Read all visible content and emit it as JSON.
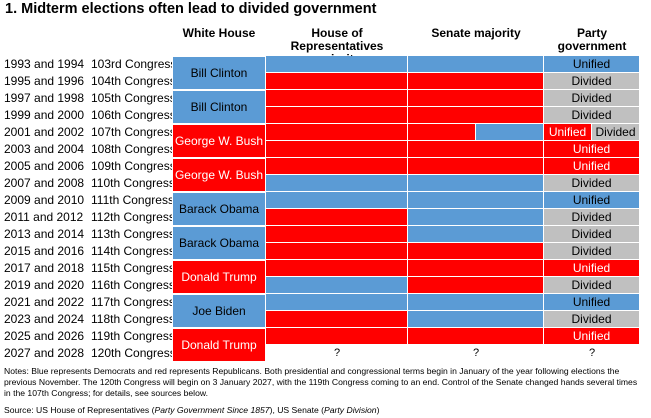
{
  "title": "1. Midterm elections often lead to divided government",
  "columns": {
    "white_house": "White House",
    "house": "House of Representatives majority",
    "senate": "Senate majority",
    "party_government": "Party government"
  },
  "colors": {
    "democrat": "#5b9bd5",
    "republican": "#ff0000",
    "divided": "#c0c0c0"
  },
  "unknown_marker": "?",
  "notes": "Notes: Blue represents Democrats and red represents Republicans. Both presidential and congressional terms begin in January of the year following elections the previous November. The 120th Congress will begin on 3 January 2027, with the 119th Congress coming to an end. Control of the Senate changed hands several times in the 107th Congress; for details, see sources below.",
  "source": {
    "prefix": "Source: US House of Representatives (",
    "house_title": "Party Government Since 1857",
    "middle": "), US Senate (",
    "senate_title": "Party Division",
    "suffix": ")"
  },
  "chart_data": {
    "type": "table",
    "presidents": [
      {
        "name": "Bill Clinton",
        "party": "D",
        "first_row": 0,
        "rows": 2
      },
      {
        "name": "Bill Clinton",
        "party": "D",
        "first_row": 2,
        "rows": 2
      },
      {
        "name": "George W. Bush",
        "party": "R",
        "first_row": 4,
        "rows": 2
      },
      {
        "name": "George W. Bush",
        "party": "R",
        "first_row": 6,
        "rows": 2
      },
      {
        "name": "Barack Obama",
        "party": "D",
        "first_row": 8,
        "rows": 2
      },
      {
        "name": "Barack Obama",
        "party": "D",
        "first_row": 10,
        "rows": 2
      },
      {
        "name": "Donald Trump",
        "party": "R",
        "first_row": 12,
        "rows": 2
      },
      {
        "name": "Joe Biden",
        "party": "D",
        "first_row": 14,
        "rows": 2
      },
      {
        "name": "Donald Trump",
        "party": "R",
        "first_row": 16,
        "rows": 2
      }
    ],
    "rows": [
      {
        "years": "1993 and 1994",
        "congress": "103rd Congress",
        "house": "D",
        "senate": "D",
        "government": "Unified"
      },
      {
        "years": "1995 and 1996",
        "congress": "104th Congress",
        "house": "R",
        "senate": "R",
        "government": "Divided"
      },
      {
        "years": "1997 and 1998",
        "congress": "105th Congress",
        "house": "R",
        "senate": "R",
        "government": "Divided"
      },
      {
        "years": "1999 and 2000",
        "congress": "106th Congress",
        "house": "R",
        "senate": "R",
        "government": "Divided"
      },
      {
        "years": "2001 and 2002",
        "congress": "107th Congress",
        "house": "R",
        "senate": "R/D",
        "senate_split": 0.5,
        "government": "Unified/Divided",
        "government_split": [
          "Unified",
          "Divided"
        ]
      },
      {
        "years": "2003 and 2004",
        "congress": "108th Congress",
        "house": "R",
        "senate": "R",
        "government": "Unified"
      },
      {
        "years": "2005 and 2006",
        "congress": "109th Congress",
        "house": "R",
        "senate": "R",
        "government": "Unified"
      },
      {
        "years": "2007 and 2008",
        "congress": "110th Congress",
        "house": "D",
        "senate": "D",
        "government": "Divided"
      },
      {
        "years": "2009 and 2010",
        "congress": "111th Congress",
        "house": "D",
        "senate": "D",
        "government": "Unified"
      },
      {
        "years": "2011 and 2012",
        "congress": "112th Congress",
        "house": "R",
        "senate": "D",
        "government": "Divided"
      },
      {
        "years": "2013 and 2014",
        "congress": "113th Congress",
        "house": "R",
        "senate": "D",
        "government": "Divided"
      },
      {
        "years": "2015 and 2016",
        "congress": "114th Congress",
        "house": "R",
        "senate": "R",
        "government": "Divided"
      },
      {
        "years": "2017 and 2018",
        "congress": "115th Congress",
        "house": "R",
        "senate": "R",
        "government": "Unified"
      },
      {
        "years": "2019 and 2020",
        "congress": "116th Congress",
        "house": "D",
        "senate": "R",
        "government": "Divided"
      },
      {
        "years": "2021 and 2022",
        "congress": "117th Congress",
        "house": "D",
        "senate": "D",
        "government": "Unified"
      },
      {
        "years": "2023 and 2024",
        "congress": "118th Congress",
        "house": "R",
        "senate": "D",
        "government": "Divided"
      },
      {
        "years": "2025 and 2026",
        "congress": "119th Congress",
        "house": "R",
        "senate": "R",
        "government": "Unified"
      },
      {
        "years": "2027 and 2028",
        "congress": "120th Congress",
        "house": "?",
        "senate": "?",
        "government": "?"
      }
    ]
  }
}
